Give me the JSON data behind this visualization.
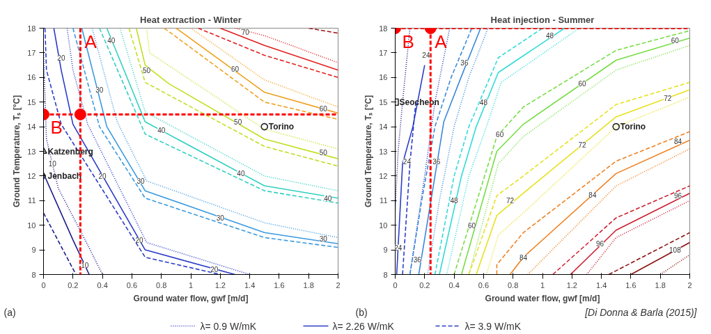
{
  "chart_data": [
    {
      "type": "line",
      "title": "Heat extraction - Winter",
      "xlabel": "Ground water flow, gwf [m/d]",
      "ylabel": "Ground Temperature, Tₛ [°C]",
      "xlim": [
        0,
        2
      ],
      "ylim": [
        8,
        18
      ],
      "xticks": [
        0,
        0.2,
        0.4,
        0.6,
        0.8,
        1,
        1.2,
        1.4,
        1.6,
        1.8,
        2
      ],
      "yticks": [
        8,
        9,
        10,
        11,
        12,
        13,
        14,
        15,
        16,
        17,
        18
      ],
      "grid": false,
      "legend": "bottom",
      "series": [
        {
          "x": [
            0,
            0.02,
            0.1,
            0.3,
            0.4
          ],
          "values": [
            17,
            13.5,
            11.5,
            9.2,
            8
          ],
          "color": "#1c1c8c",
          "line_style": "dotted"
        },
        {
          "x": [
            0,
            0.2,
            0.31
          ],
          "values": [
            12.1,
            9.4,
            8
          ],
          "color": "#1c1c8c",
          "line_style": "solid"
        },
        {
          "x": [
            0,
            0.22
          ],
          "values": [
            10.5,
            8
          ],
          "color": "#1c1c8c",
          "line_style": "dashed"
        },
        {
          "name": "λ= 0.9 W/mK",
          "x": [
            0.16,
            0.2,
            0.3,
            0.7,
            1.4
          ],
          "values": [
            18,
            16.3,
            14.1,
            9.3,
            8
          ],
          "color": "#2a3cc8",
          "line_style": "dotted"
        },
        {
          "name": "λ= 2.26 W/mK",
          "x": [
            0.07,
            0.12,
            0.2,
            0.69,
            1.3
          ],
          "values": [
            18,
            16.3,
            14.1,
            9,
            8
          ],
          "color": "#2a3cc8",
          "line_style": "solid"
        },
        {
          "name": "λ= 3.9 W/mK",
          "x": [
            0.01,
            0.02,
            0.12,
            0.69,
            1.2
          ],
          "values": [
            18,
            16.3,
            14.1,
            8.7,
            8
          ],
          "color": "#2a3cc8",
          "line_style": "dashed"
        },
        {
          "x": [
            0.33,
            0.5,
            0.7,
            1.5,
            2
          ],
          "values": [
            18,
            14.2,
            11.8,
            10.1,
            9.5
          ],
          "color": "#3a9ae0",
          "line_style": "dotted"
        },
        {
          "x": [
            0.26,
            0.43,
            0.69,
            1.5,
            2
          ],
          "values": [
            18,
            14,
            11.4,
            9.7,
            9.25
          ],
          "color": "#3a9ae0",
          "line_style": "solid"
        },
        {
          "x": [
            0.2,
            0.38,
            0.69,
            1.5,
            2
          ],
          "values": [
            18,
            14,
            11.1,
            9.5,
            9.1
          ],
          "color": "#3a9ae0",
          "line_style": "dashed"
        },
        {
          "x": [
            0.52,
            0.69,
            1.5,
            2
          ],
          "values": [
            18,
            14.6,
            12,
            11.4
          ],
          "color": "#30d0c0",
          "line_style": "dotted"
        },
        {
          "x": [
            0.43,
            0.69,
            1.5,
            2
          ],
          "values": [
            18,
            14.2,
            11.6,
            11.1
          ],
          "color": "#30d0c0",
          "line_style": "solid"
        },
        {
          "x": [
            0.38,
            0.69,
            1.5,
            2
          ],
          "values": [
            18,
            13.7,
            11.4,
            10.9
          ],
          "color": "#30d0c0",
          "line_style": "dashed"
        },
        {
          "x": [
            0.7,
            0.72,
            1.5,
            2
          ],
          "values": [
            18,
            17,
            13.9,
            13.1
          ],
          "color": "#c0e020",
          "line_style": "dotted"
        },
        {
          "x": [
            0.63,
            0.69,
            0.85,
            1.5,
            2
          ],
          "values": [
            18,
            16.5,
            15.75,
            13.5,
            12.7
          ],
          "color": "#c0e020",
          "line_style": "solid"
        },
        {
          "x": [
            0.58,
            0.69,
            1.5,
            2
          ],
          "values": [
            18,
            15.8,
            13.2,
            12.4
          ],
          "color": "#c0e020",
          "line_style": "dashed"
        },
        {
          "x": [
            1,
            1.5,
            2
          ],
          "values": [
            18,
            15.9,
            14.8
          ],
          "color": "#f0a020",
          "line_style": "dotted"
        },
        {
          "x": [
            0.9,
            1.5,
            2
          ],
          "values": [
            18,
            15.4,
            14.55
          ],
          "color": "#f0a020",
          "line_style": "solid"
        },
        {
          "x": [
            0.82,
            1.5,
            2
          ],
          "values": [
            18,
            15,
            14.3
          ],
          "color": "#f0a020",
          "line_style": "dashed"
        },
        {
          "x": [
            1.3,
            1.5,
            2
          ],
          "values": [
            18,
            17.7,
            16.6
          ],
          "color": "#e02020",
          "line_style": "dotted"
        },
        {
          "x": [
            1.2,
            1.5,
            2
          ],
          "values": [
            18,
            17.3,
            16.3
          ],
          "color": "#e02020",
          "line_style": "solid"
        },
        {
          "x": [
            1.05,
            1.5,
            2
          ],
          "values": [
            18,
            16.9,
            16
          ],
          "color": "#e02020",
          "line_style": "dashed"
        },
        {
          "x": [
            1.8,
            2
          ],
          "values": [
            18,
            17.8
          ],
          "color": "#a01010",
          "line_style": "dashed"
        },
        {
          "type": "scatter",
          "name": "Katzenberg",
          "x": [
            0
          ],
          "values": [
            13
          ],
          "color": "#222222",
          "marker": "triangle"
        },
        {
          "type": "scatter",
          "name": "Jenbach",
          "x": [
            0
          ],
          "values": [
            12
          ],
          "color": "#222222",
          "marker": "diamond"
        },
        {
          "type": "scatter",
          "name": "Torino",
          "x": [
            1.5
          ],
          "values": [
            14
          ],
          "color": "#222222",
          "marker": "circle"
        },
        {
          "type": "scatter",
          "x": [
            0,
            0.25
          ],
          "values": [
            14.5,
            14.5
          ],
          "color": "#ff0000",
          "marker": "circle"
        }
      ],
      "ref_lines": [
        {
          "axis": "x",
          "value": 0.25,
          "label": "A",
          "color": "#ff0000",
          "line_style": "dashed"
        },
        {
          "axis": "y",
          "value": 14.5,
          "label": "B",
          "color": "#ff0000",
          "line_style": "dashed"
        }
      ],
      "annotations": [
        "(a)",
        {
          "text": "10",
          "x": 0.06,
          "y": 12.5
        },
        {
          "text": "10",
          "x": 0.28,
          "y": 8.38
        },
        {
          "text": "20",
          "x": 0.12,
          "y": 16.8
        },
        {
          "text": "20",
          "x": 0.4,
          "y": 12
        },
        {
          "text": "20",
          "x": 0.65,
          "y": 9.4
        },
        {
          "text": "20",
          "x": 1.16,
          "y": 8.2
        },
        {
          "text": "30",
          "x": 0.38,
          "y": 15.5
        },
        {
          "text": "30",
          "x": 0.66,
          "y": 11.8
        },
        {
          "text": "30",
          "x": 1.2,
          "y": 10.3
        },
        {
          "text": "30",
          "x": 1.9,
          "y": 9.45
        },
        {
          "text": "40",
          "x": 0.46,
          "y": 17.5
        },
        {
          "text": "40",
          "x": 0.8,
          "y": 13.85
        },
        {
          "text": "40",
          "x": 1.34,
          "y": 12.1
        },
        {
          "text": "40",
          "x": 1.93,
          "y": 11.1
        },
        {
          "text": "50",
          "x": 0.7,
          "y": 16.3
        },
        {
          "text": "50",
          "x": 1.32,
          "y": 14.2
        },
        {
          "text": "50",
          "x": 1.9,
          "y": 12.95
        },
        {
          "text": "60",
          "x": 1.3,
          "y": 16.35
        },
        {
          "text": "60",
          "x": 1.9,
          "y": 14.75
        },
        {
          "text": "70",
          "x": 1.37,
          "y": 17.85
        }
      ]
    },
    {
      "type": "line",
      "title": "Heat injection - Summer",
      "xlabel": "Ground water flow, gwf [m/d]",
      "ylabel": "Ground Temperature, Tₛ [°C]",
      "xlim": [
        0,
        2
      ],
      "ylim": [
        8,
        18
      ],
      "xticks": [
        0,
        0.2,
        0.4,
        0.6,
        0.8,
        1,
        1.2,
        1.4,
        1.6,
        1.8,
        2
      ],
      "yticks": [
        8,
        9,
        10,
        11,
        12,
        13,
        14,
        15,
        16,
        17,
        18
      ],
      "grid": false,
      "series": [
        {
          "x": [
            0,
            0.02,
            0.05,
            0.1
          ],
          "values": [
            10.6,
            13,
            15,
            18
          ],
          "color": "#1c1c8c",
          "line_style": "dotted"
        },
        {
          "x": [
            0.05,
            0.1,
            0.14
          ],
          "values": [
            8,
            12.5,
            15
          ],
          "color": "#2a3cc8",
          "line_style": "dashed"
        },
        {
          "x": [
            0.01,
            0.05,
            0.12,
            0.2
          ],
          "values": [
            8,
            12.5,
            14,
            16.5
          ],
          "color": "#2a3cc8",
          "line_style": "solid"
        },
        {
          "x": [
            0.1,
            0.2,
            0.27,
            0.37
          ],
          "values": [
            8,
            12,
            15,
            18
          ],
          "color": "#2a3cc8",
          "line_style": "dotted"
        },
        {
          "x": [
            0.1,
            0.18,
            0.27,
            0.38,
            0.52
          ],
          "values": [
            8,
            11,
            14,
            16,
            18
          ],
          "color": "#3a88dd",
          "line_style": "dashed"
        },
        {
          "x": [
            0.16,
            0.24,
            0.33,
            0.44,
            0.58
          ],
          "values": [
            8,
            10.9,
            14.2,
            15.9,
            18
          ],
          "color": "#3a88dd",
          "line_style": "solid"
        },
        {
          "x": [
            0.22,
            0.3,
            0.4,
            0.5,
            0.63
          ],
          "values": [
            8,
            11,
            14,
            16,
            18
          ],
          "color": "#3a88dd",
          "line_style": "dotted"
        },
        {
          "x": [
            0.27,
            0.4,
            0.5,
            0.7,
            1
          ],
          "values": [
            8,
            12,
            14,
            16.8,
            18
          ],
          "color": "#30dada",
          "line_style": "dashed"
        },
        {
          "x": [
            0.3,
            0.45,
            0.55,
            0.7,
            1.15
          ],
          "values": [
            8,
            12,
            14,
            16.2,
            18
          ],
          "color": "#30dada",
          "line_style": "solid"
        },
        {
          "x": [
            0.35,
            0.5,
            0.62,
            0.72,
            1.25
          ],
          "values": [
            8,
            12,
            14,
            15.8,
            18
          ],
          "color": "#30dada",
          "line_style": "dotted"
        },
        {
          "x": [
            0.4,
            0.69,
            0.87,
            1.5,
            2
          ],
          "values": [
            8,
            13.6,
            14.8,
            17.1,
            17.9
          ],
          "color": "#77dd44",
          "line_style": "dashed"
        },
        {
          "x": [
            0.45,
            0.69,
            0.87,
            1.5,
            2
          ],
          "values": [
            8,
            13,
            14.1,
            16.7,
            17.6
          ],
          "color": "#77dd44",
          "line_style": "solid"
        },
        {
          "x": [
            0.5,
            0.7,
            0.87,
            1.5,
            2
          ],
          "values": [
            8,
            12.5,
            13.6,
            16.3,
            17.3
          ],
          "color": "#77dd44",
          "line_style": "dotted"
        },
        {
          "x": [
            0.5,
            0.69,
            0.87,
            1.5,
            2
          ],
          "values": [
            8,
            11.2,
            12,
            14.9,
            15.8
          ],
          "color": "#e8e020",
          "line_style": "dashed"
        },
        {
          "x": [
            0.55,
            0.69,
            0.87,
            1.5,
            2
          ],
          "values": [
            8,
            10.4,
            11.3,
            14.4,
            15.5
          ],
          "color": "#e8e020",
          "line_style": "solid"
        },
        {
          "x": [
            0.62,
            0.7,
            0.87,
            1.5,
            2
          ],
          "values": [
            8,
            9.6,
            10.5,
            14,
            15.2
          ],
          "color": "#e8e020",
          "line_style": "dotted"
        },
        {
          "x": [
            0.69,
            0.69,
            0.87,
            1.5,
            2
          ],
          "values": [
            8,
            8.4,
            9.7,
            12.6,
            13.8
          ],
          "color": "#f08020",
          "line_style": "dashed"
        },
        {
          "x": [
            0.78,
            0.87,
            1.5,
            2
          ],
          "values": [
            8,
            8.7,
            12.1,
            13.45
          ],
          "color": "#f08020",
          "line_style": "solid"
        },
        {
          "x": [
            0.9,
            1.5,
            2
          ],
          "values": [
            8,
            11.6,
            13.1
          ],
          "color": "#f08020",
          "line_style": "dotted"
        },
        {
          "x": [
            1.07,
            1.5,
            2
          ],
          "values": [
            8,
            10.3,
            11.6
          ],
          "color": "#cc1f2f",
          "line_style": "dashed"
        },
        {
          "x": [
            1.19,
            1.5,
            2
          ],
          "values": [
            8,
            9.8,
            11.3
          ],
          "color": "#cc1f2f",
          "line_style": "solid"
        },
        {
          "x": [
            1.3,
            1.5,
            2
          ],
          "values": [
            8,
            9.5,
            11
          ],
          "color": "#cc1f2f",
          "line_style": "dotted"
        },
        {
          "x": [
            1.45,
            2
          ],
          "values": [
            8,
            9.7
          ],
          "color": "#8b1010",
          "line_style": "dashed"
        },
        {
          "x": [
            1.6,
            2
          ],
          "values": [
            8,
            9.3
          ],
          "color": "#8b1010",
          "line_style": "solid"
        },
        {
          "x": [
            1.8,
            2
          ],
          "values": [
            8,
            8.8
          ],
          "color": "#8b1010",
          "line_style": "dotted"
        },
        {
          "type": "scatter",
          "name": "Seocheon",
          "x": [
            0
          ],
          "values": [
            15
          ],
          "color": "#222222",
          "marker": "square"
        },
        {
          "type": "scatter",
          "name": "Torino",
          "x": [
            1.5
          ],
          "values": [
            14
          ],
          "color": "#222222",
          "marker": "circle"
        },
        {
          "type": "scatter",
          "x": [
            0,
            0.24
          ],
          "values": [
            18,
            18
          ],
          "color": "#ff0000",
          "marker": "circle"
        }
      ],
      "ref_lines": [
        {
          "axis": "x",
          "value": 0.24,
          "label": "A",
          "color": "#ff0000",
          "line_style": "dashed"
        },
        {
          "axis": "y",
          "value": 18,
          "label": "B",
          "color": "#ff0000",
          "line_style": "dashed"
        }
      ],
      "annotations": [
        "(b)",
        "[Di Donna & Barla (2015)]",
        {
          "text": "24",
          "x": 0.08,
          "y": 12.6
        },
        {
          "text": "24",
          "x": 0.21,
          "y": 16.9
        },
        {
          "text": "24",
          "x": 0.02,
          "y": 9.1
        },
        {
          "text": "36",
          "x": 0.47,
          "y": 16.6
        },
        {
          "text": "36",
          "x": 0.28,
          "y": 12.6
        },
        {
          "text": "36",
          "x": 0.15,
          "y": 8.6
        },
        {
          "text": "48",
          "x": 0.6,
          "y": 15
        },
        {
          "text": "48",
          "x": 0.4,
          "y": 11
        },
        {
          "text": "48",
          "x": 1.05,
          "y": 17.7
        },
        {
          "text": "60",
          "x": 0.52,
          "y": 10
        },
        {
          "text": "60",
          "x": 0.71,
          "y": 13.7
        },
        {
          "text": "60",
          "x": 1.27,
          "y": 15.75
        },
        {
          "text": "60",
          "x": 1.9,
          "y": 17.5
        },
        {
          "text": "72",
          "x": 0.78,
          "y": 11
        },
        {
          "text": "72",
          "x": 1.27,
          "y": 13.27
        },
        {
          "text": "72",
          "x": 1.85,
          "y": 15.17
        },
        {
          "text": "84",
          "x": 0.87,
          "y": 8.7
        },
        {
          "text": "84",
          "x": 1.34,
          "y": 11.24
        },
        {
          "text": "84",
          "x": 1.92,
          "y": 13.4
        },
        {
          "text": "96",
          "x": 1.39,
          "y": 9.25
        },
        {
          "text": "96",
          "x": 1.92,
          "y": 11.2
        },
        {
          "text": "108",
          "x": 1.9,
          "y": 9
        }
      ]
    }
  ]
}
